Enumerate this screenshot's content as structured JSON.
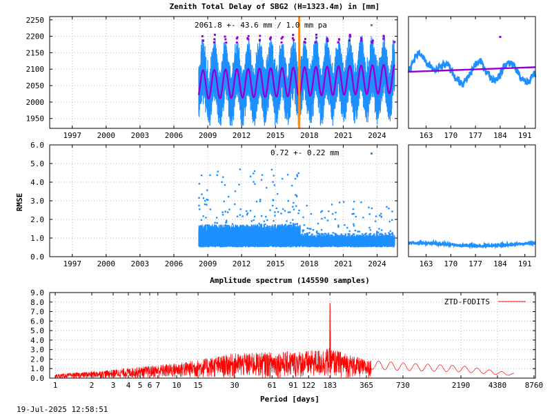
{
  "colors": {
    "ztd_points": "#1e90ff",
    "model_fit": "#9400d3",
    "outlier": "#9400d3",
    "event_marker": "#ff8c1a",
    "rmse_points": "#1e90ff",
    "spectrum_line": "#ff0000"
  },
  "footer": {
    "timestamp": "19-Jul-2025 12:58:51"
  },
  "chart_data": [
    {
      "id": "ztd",
      "type": "scatter",
      "title": "Zenith Total Delay of SBG2 (H=1323.4m) in [mm]",
      "annotation": "2061.8 +-  43.6 mm /  1.0 mm pa",
      "xlabel": "",
      "ylabel": "",
      "xlim": [
        1995,
        2025.8
      ],
      "ylim": [
        1920,
        2260
      ],
      "x_ticks": [
        "1997",
        "2000",
        "2003",
        "2006",
        "2009",
        "2012",
        "2015",
        "2018",
        "2021",
        "2024"
      ],
      "y_ticks": [
        "1950",
        "2000",
        "2050",
        "2100",
        "2150",
        "2200",
        "2250"
      ],
      "data_start": 2008.2,
      "data_end": 2025.55,
      "seasonal_model": {
        "mean": 2061.8,
        "amplitude": 43.6,
        "trend_mm_per_year": 1.0
      },
      "event_line_x": 2017.1,
      "grid": true
    },
    {
      "id": "ztd_zoom",
      "type": "scatter",
      "x_unit": "day of year",
      "xlim": [
        158,
        194
      ],
      "x_ticks": [
        "163",
        "170",
        "177",
        "184",
        "191"
      ],
      "ylim": [
        1920,
        2260
      ],
      "fit_line": [
        2092,
        2106
      ]
    },
    {
      "id": "rmse",
      "type": "scatter",
      "ylabel": "RMSE",
      "annotation": "0.72 +-  0.22 mm",
      "xlim": [
        1995,
        2025.8
      ],
      "ylim": [
        0,
        6
      ],
      "x_ticks": [
        "1997",
        "2000",
        "2003",
        "2006",
        "2009",
        "2012",
        "2015",
        "2018",
        "2021",
        "2024"
      ],
      "y_ticks": [
        "0.0",
        "1.0",
        "2.0",
        "3.0",
        "4.0",
        "5.0",
        "6.0"
      ],
      "typical_value": 0.72,
      "spread": 0.22,
      "grid": true
    },
    {
      "id": "rmse_zoom",
      "type": "scatter",
      "x_unit": "day of year",
      "xlim": [
        158,
        194
      ],
      "x_ticks": [
        "163",
        "170",
        "177",
        "184",
        "191"
      ],
      "ylim": [
        0,
        6
      ],
      "typical_value": 0.62
    },
    {
      "id": "spectrum",
      "type": "line",
      "title": "Amplitude spectrum (145590 samples)",
      "xlabel": "Period [days]",
      "ylabel": "",
      "x_scale": "log",
      "xlim": [
        0.9,
        9000
      ],
      "ylim": [
        0,
        9
      ],
      "x_ticks": [
        "1",
        "2",
        "3",
        "4",
        "5",
        "6",
        "7",
        "10",
        "15",
        "30",
        "61",
        "91",
        "122",
        "183",
        "365",
        "730",
        "2190",
        "4380",
        "8760"
      ],
      "y_ticks": [
        "0.0",
        "1.0",
        "2.0",
        "3.0",
        "4.0",
        "5.0",
        "6.0",
        "7.0",
        "8.0",
        "9.0"
      ],
      "series": [
        {
          "name": "ZTD-FODITS",
          "peaks": [
            [
              183,
              7.9
            ],
            [
              182.5,
              6.2
            ],
            [
              184,
              4.9
            ]
          ],
          "envelope": [
            [
              1,
              0.4
            ],
            [
              3,
              0.9
            ],
            [
              10,
              1.6
            ],
            [
              30,
              2.6
            ],
            [
              122,
              2.9
            ],
            [
              183,
              3.2
            ],
            [
              365,
              1.9
            ],
            [
              730,
              1.6
            ],
            [
              2190,
              1.3
            ],
            [
              6000,
              0.5
            ]
          ]
        }
      ],
      "grid": true
    }
  ]
}
